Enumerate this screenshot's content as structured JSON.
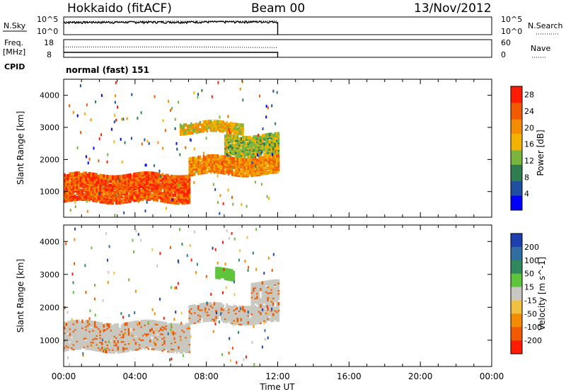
{
  "header": {
    "station": "Hokkaido (fitACF)",
    "beam": "Beam 00",
    "date": "13/Nov/2012"
  },
  "side_labels": {
    "nsky": "N.Sky",
    "nsearch": "N.Search",
    "freq_top": "Freq.",
    "freq_unit": "[MHz]",
    "nave": "Nave",
    "cpid": "CPID",
    "cpid_value": "normal (fast) 151",
    "nsky_ticks": [
      "10^5",
      "10^0"
    ],
    "nsearch_ticks": [
      "10^5",
      "10^0"
    ],
    "freq_ticks": [
      "18",
      "8"
    ],
    "nave_ticks": [
      "60",
      "0"
    ]
  },
  "colors": {
    "power_scale": [
      "#0000ff",
      "#1e4fa0",
      "#2e7d4f",
      "#7ab540",
      "#f2b200",
      "#f28c00",
      "#f25a00",
      "#ff1c00"
    ],
    "velocity_scale": [
      "#1e3fb0",
      "#2e6fa0",
      "#2e8a5a",
      "#5ec43c",
      "#c8c8c0",
      "#f2c040",
      "#f28c00",
      "#f25a00",
      "#ff1c00"
    ]
  },
  "chart_data": [
    {
      "type": "line",
      "panel": "N.Sky / N.Search",
      "x": [
        "00:00",
        "12:00"
      ],
      "x_range_hours": [
        0,
        24
      ],
      "series": [
        {
          "name": "N.Sky",
          "values": [
            2000,
            3000
          ]
        },
        {
          "name": "N.Search",
          "values": [
            2000,
            3000
          ]
        }
      ],
      "yscale": "log",
      "ylim": [
        1,
        100000
      ]
    },
    {
      "type": "line",
      "panel": "Freq. / Nave",
      "x": [
        "00:00",
        "07:30",
        "12:00"
      ],
      "series": [
        {
          "name": "Freq.",
          "values": [
            10.8,
            10.8,
            10.8
          ]
        },
        {
          "name": "Nave",
          "values": [
            35,
            35,
            33
          ]
        }
      ],
      "ylim_left": [
        8,
        18
      ],
      "ylim_right": [
        0,
        60
      ]
    },
    {
      "type": "heatmap",
      "panel": "Power",
      "xlabel": "",
      "ylabel": "Slant Range [km]",
      "x_range_hours": [
        0,
        24
      ],
      "data_end_hour": 12,
      "ylim": [
        200,
        4500
      ],
      "yticks": [
        1000,
        2000,
        3000,
        4000
      ],
      "colorbar": {
        "label": "Power [dB]",
        "ticks": [
          4,
          8,
          12,
          16,
          20,
          24,
          28
        ],
        "range": [
          0,
          30
        ]
      },
      "echo_bands": [
        {
          "t_start": 0,
          "t_end": 7,
          "range_low": 650,
          "range_high": 1500,
          "value": 26
        },
        {
          "t_start": 7,
          "t_end": 12,
          "range_low": 1500,
          "range_high": 2000,
          "value": 22
        },
        {
          "t_start": 9,
          "t_end": 12,
          "range_low": 2100,
          "range_high": 2700,
          "value": 14
        },
        {
          "t_start": 6.5,
          "t_end": 10,
          "range_low": 2800,
          "range_high": 3100,
          "value": 18
        }
      ]
    },
    {
      "type": "heatmap",
      "panel": "Velocity",
      "xlabel": "Time UT",
      "ylabel": "Slant Range [km]",
      "x_range_hours": [
        0,
        24
      ],
      "data_end_hour": 12,
      "ylim": [
        200,
        4500
      ],
      "yticks": [
        1000,
        2000,
        3000,
        4000
      ],
      "xticks": [
        "00:00",
        "04:00",
        "08:00",
        "12:00",
        "16:00",
        "20:00",
        "00:00"
      ],
      "colorbar": {
        "label": "Velocity [m s^-1]",
        "ticks": [
          200,
          100,
          50,
          15,
          -15,
          -50,
          -100,
          -200
        ]
      },
      "echo_bands": [
        {
          "t_start": 0,
          "t_end": 7,
          "range_low": 650,
          "range_high": 1500,
          "value": 0
        },
        {
          "t_start": 7,
          "t_end": 12,
          "range_low": 1500,
          "range_high": 2000,
          "value": 0
        },
        {
          "t_start": 10.5,
          "t_end": 12,
          "range_low": 2100,
          "range_high": 2700,
          "value": 0
        },
        {
          "t_start": 8.5,
          "t_end": 9.5,
          "range_low": 2800,
          "range_high": 3100,
          "value": 50
        }
      ]
    }
  ]
}
